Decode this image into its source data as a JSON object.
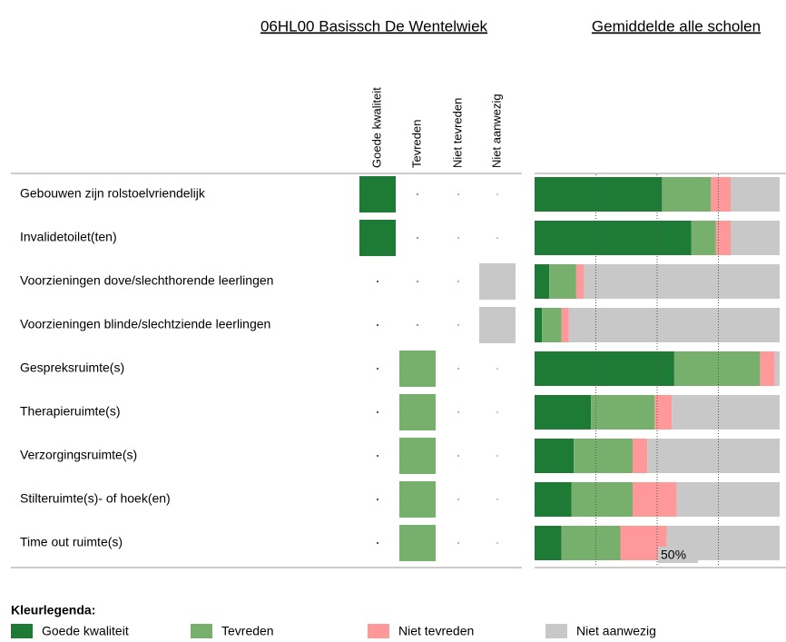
{
  "title": "06HL00 Basissch De Wentelwiek",
  "school": {
    "answers": [
      0,
      0,
      3,
      3,
      1,
      1,
      1,
      1,
      1
    ]
  },
  "chart_data": {
    "type": "bar",
    "orientation": "horizontal",
    "stacked": true,
    "title": "Gemiddelde alle scholen",
    "categories": [
      "Gebouwen zijn rolstoelvriendelijk",
      "Invalidetoilet(ten)",
      "Voorzieningen dove/slechthorende leerlingen",
      "Voorzieningen blinde/slechtziende leerlingen",
      "Gespreksruimte(s)",
      "Therapieruimte(s)",
      "Verzorgingsruimte(s)",
      "Stilteruimte(s)- of hoek(en)",
      "Time out ruimte(s)"
    ],
    "series": [
      {
        "name": "Goede kwaliteit",
        "color": "#1e7b35",
        "values": [
          52,
          64,
          6,
          3,
          57,
          23,
          16,
          15,
          11
        ]
      },
      {
        "name": "Tevreden",
        "color": "#77b06c",
        "values": [
          20,
          10,
          11,
          8,
          35,
          26,
          24,
          25,
          24
        ]
      },
      {
        "name": "Niet tevreden",
        "color": "#ff9999",
        "values": [
          8,
          6,
          3,
          3,
          6,
          7,
          6,
          18,
          19
        ]
      },
      {
        "name": "Niet aanwezig",
        "color": "#c8c8c8",
        "values": [
          20,
          20,
          80,
          86,
          2,
          44,
          54,
          42,
          46
        ]
      }
    ],
    "xlim": [
      0,
      100
    ],
    "gridlines": [
      25,
      50,
      75
    ],
    "xticks": [
      {
        "value": 50,
        "label": "50%"
      }
    ],
    "legend_title": "Kleurlegenda:"
  }
}
